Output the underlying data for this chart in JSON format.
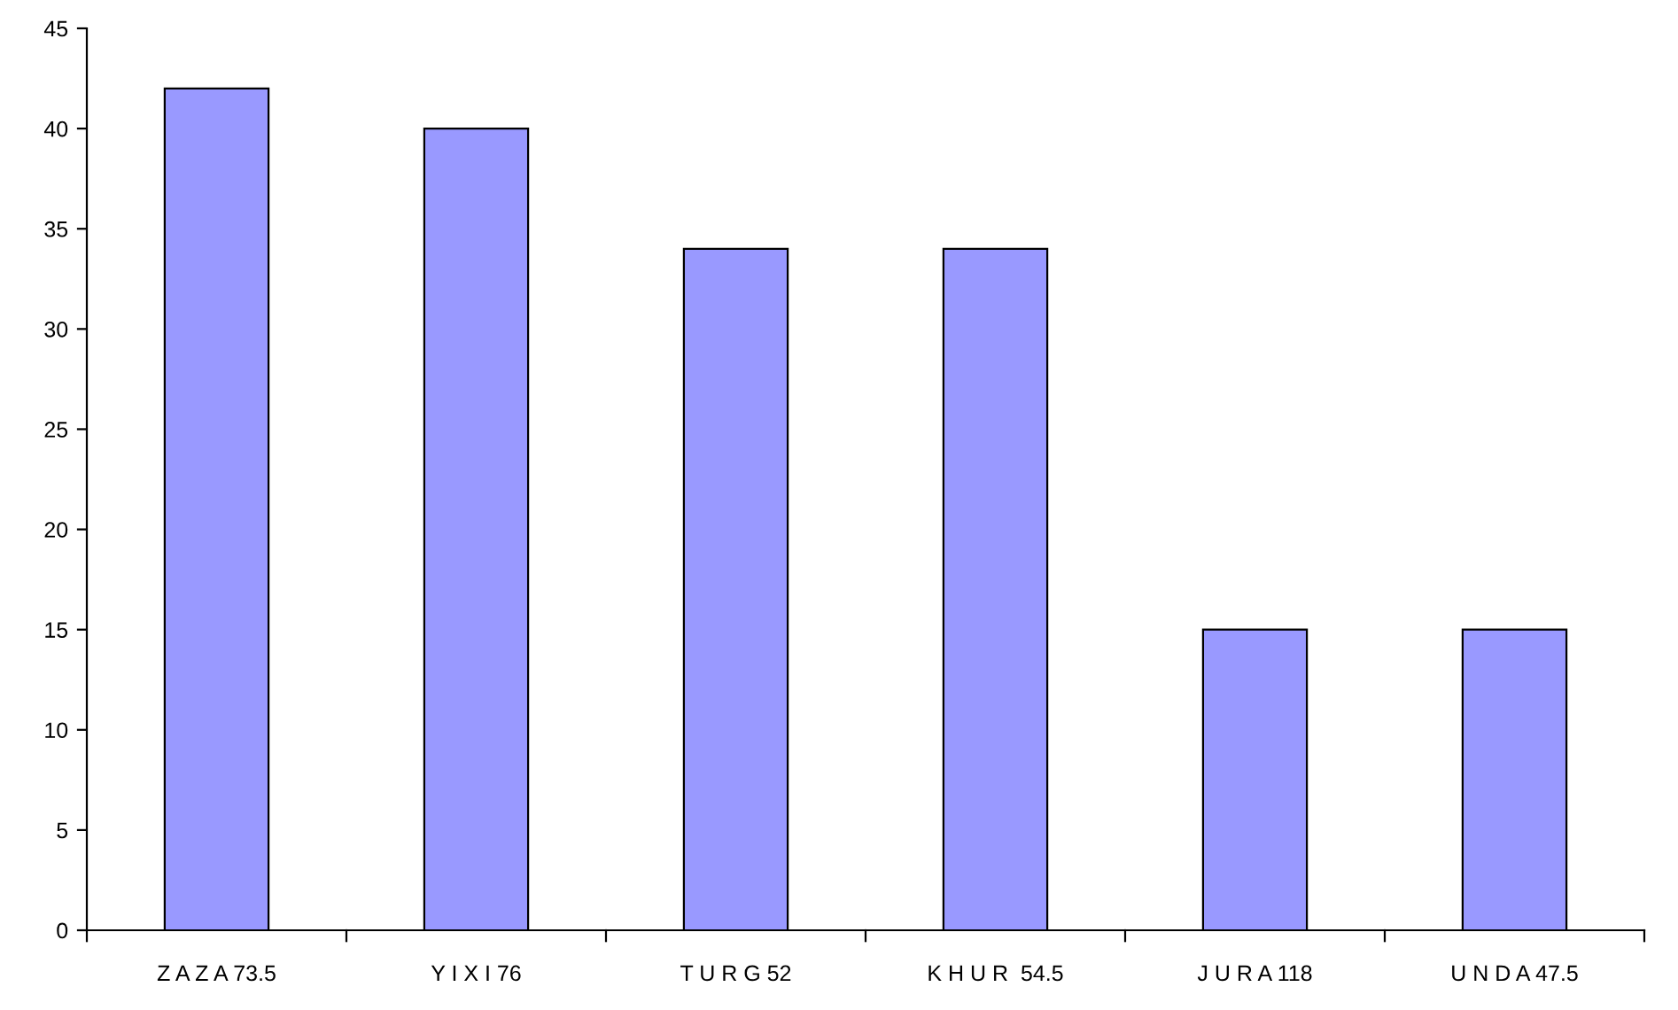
{
  "chart_data": {
    "type": "bar",
    "categories": [
      "Z A Z A 73.5",
      "Y I X I 76",
      "T U R G 52",
      "K H U R  54.5",
      "J U R A 118",
      "U N D A 47.5"
    ],
    "values": [
      42,
      40,
      34,
      34,
      15,
      15
    ],
    "color": "#9999ff",
    "ylim": [
      0,
      45
    ],
    "yticks": [
      0,
      5,
      10,
      15,
      20,
      25,
      30,
      35,
      40,
      45
    ],
    "grid": false,
    "legend": false
  }
}
